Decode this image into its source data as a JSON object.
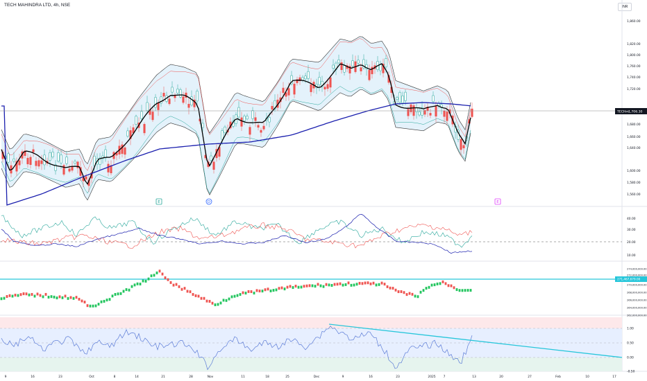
{
  "header": {
    "title": "TECH MAHINDRA LTD, 4h, NSE",
    "currency": "INR"
  },
  "colors": {
    "up": "#26a69a",
    "down": "#ef5350",
    "ma": "#1a1fae",
    "band_fill": "#dff0fa",
    "cyan": "#26c6da",
    "macd_up": "#22c55e",
    "macd_down": "#ef5350"
  },
  "chart_data": [
    {
      "type": "candlestick",
      "panel": "price",
      "y_ticks": [
        "1,860.00",
        "1,820.00",
        "1,800.00",
        "1,760.00",
        "1,740.00",
        "1,720.00",
        "1,680.00",
        "1,660.00",
        "1,640.00",
        "1,600.00",
        "1,580.00",
        "1,560.00"
      ],
      "last_price_label": "1,706.30",
      "last_price_tag": "TECHm",
      "event_markers": [
        "E",
        "D",
        "E"
      ]
    },
    {
      "type": "line",
      "panel": "indicator-1",
      "y_ticks": [
        "40.00",
        "30.00",
        "20.00",
        "10.00"
      ]
    },
    {
      "type": "bar",
      "panel": "indicator-2",
      "y_ticks": [
        "274,000,000.00",
        "272,000,000.00",
        "270,000,000.00",
        "268,000,000.00",
        "266,000,000.00",
        "264,000,000.00",
        "262,000,000.00"
      ],
      "level_label": "271,467,679.00"
    },
    {
      "type": "line",
      "panel": "indicator-3",
      "y_ticks": [
        "1.00",
        "0.50",
        "0.00",
        "-0.50"
      ]
    }
  ],
  "x_axis": {
    "ticks": [
      "9",
      "16",
      "23",
      "Oct",
      "8",
      "14",
      "21",
      "28",
      "Nov",
      "11",
      "18",
      "25",
      "Dec",
      "9",
      "16",
      "23",
      "2025",
      "7",
      "13",
      "20",
      "27",
      "Feb",
      "10",
      "17"
    ]
  }
}
